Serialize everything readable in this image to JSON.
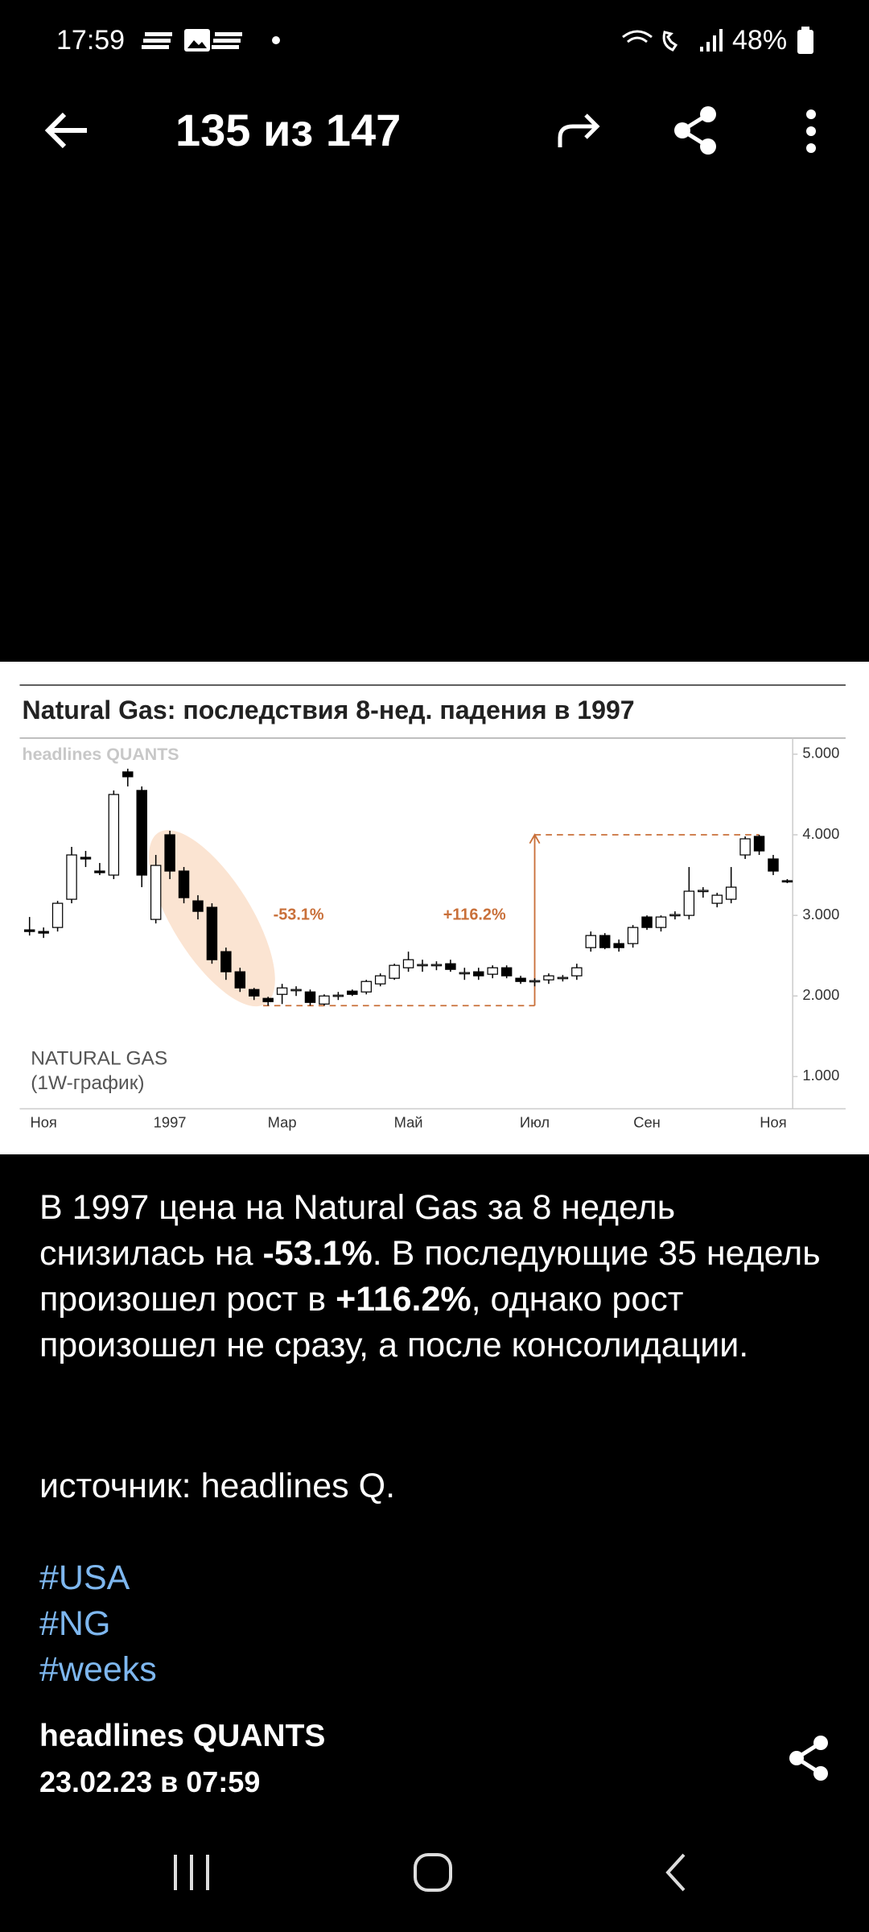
{
  "status_bar": {
    "time": "17:59",
    "battery": "48%"
  },
  "toolbar": {
    "title": "135 из 147"
  },
  "chart_data": {
    "type": "candlestick",
    "title": "Natural Gas: последствия 8-нед. падения в 1997",
    "watermark": "headlines QUANTS",
    "series_label": "NATURAL GAS",
    "series_sublabel": "(1W-график)",
    "annotations": [
      "-53.1%",
      "+116.2%"
    ],
    "categories": [
      null,
      "Ноя",
      null,
      null,
      null,
      null,
      null,
      null,
      null,
      null,
      "1997",
      null,
      null,
      null,
      null,
      null,
      null,
      null,
      "Мар",
      null,
      null,
      null,
      null,
      null,
      null,
      null,
      null,
      "Май",
      null,
      null,
      null,
      null,
      null,
      null,
      null,
      null,
      "Июл",
      null,
      null,
      null,
      null,
      null,
      null,
      null,
      "Сен",
      null,
      null,
      null,
      null,
      null,
      null,
      null,
      null,
      "Ноя",
      null
    ],
    "open": [
      2.82,
      2.8,
      2.85,
      3.2,
      3.72,
      3.55,
      3.5,
      4.78,
      4.55,
      2.95,
      4.0,
      3.55,
      3.18,
      3.1,
      2.55,
      2.3,
      2.08,
      1.97,
      2.02,
      2.07,
      2.05,
      1.9,
      2.0,
      2.06,
      2.05,
      2.15,
      2.22,
      2.35,
      2.38,
      2.38,
      2.4,
      2.28,
      2.3,
      2.27,
      2.35,
      2.22,
      2.18,
      2.2,
      2.22,
      2.25,
      2.6,
      2.75,
      2.65,
      2.65,
      2.98,
      2.85,
      3.0,
      3.0,
      3.3,
      3.15,
      3.2,
      3.75,
      3.98,
      3.7,
      3.43
    ],
    "high": [
      2.98,
      2.85,
      3.18,
      3.85,
      3.8,
      3.65,
      4.55,
      4.82,
      4.6,
      3.75,
      4.05,
      3.6,
      3.25,
      3.15,
      2.6,
      2.35,
      2.1,
      1.99,
      2.15,
      2.12,
      2.08,
      2.02,
      2.05,
      2.08,
      2.2,
      2.28,
      2.4,
      2.55,
      2.45,
      2.43,
      2.45,
      2.35,
      2.35,
      2.38,
      2.38,
      2.25,
      2.22,
      2.28,
      2.26,
      2.4,
      2.8,
      2.78,
      2.7,
      2.88,
      3.0,
      3.0,
      3.05,
      3.6,
      3.35,
      3.28,
      3.6,
      3.98,
      4.0,
      3.75,
      3.45
    ],
    "low": [
      2.75,
      2.72,
      2.8,
      3.15,
      3.6,
      3.5,
      3.45,
      4.6,
      3.35,
      2.9,
      3.45,
      3.15,
      2.95,
      2.4,
      2.2,
      2.05,
      1.95,
      1.88,
      1.9,
      2.0,
      1.88,
      1.88,
      1.95,
      2.0,
      2.02,
      2.12,
      2.2,
      2.3,
      2.3,
      2.32,
      2.3,
      2.2,
      2.2,
      2.22,
      2.22,
      2.15,
      2.12,
      2.15,
      2.18,
      2.2,
      2.55,
      2.58,
      2.55,
      2.6,
      2.82,
      2.8,
      2.95,
      2.95,
      3.22,
      3.1,
      3.15,
      3.7,
      3.75,
      3.5,
      3.4
    ],
    "close": [
      2.8,
      2.78,
      3.15,
      3.75,
      3.7,
      3.53,
      4.5,
      4.72,
      3.5,
      3.62,
      3.55,
      3.22,
      3.05,
      2.45,
      2.3,
      2.1,
      2.0,
      1.93,
      2.1,
      2.08,
      1.92,
      2.0,
      2.01,
      2.02,
      2.18,
      2.25,
      2.38,
      2.45,
      2.39,
      2.39,
      2.33,
      2.29,
      2.25,
      2.35,
      2.25,
      2.18,
      2.19,
      2.25,
      2.23,
      2.35,
      2.75,
      2.6,
      2.6,
      2.85,
      2.85,
      2.98,
      3.01,
      3.3,
      3.31,
      3.25,
      3.35,
      3.95,
      3.8,
      3.55,
      3.42
    ],
    "ylim": [
      0.6,
      5.2
    ],
    "yticks": [
      {
        "value": 5,
        "label": "5.000"
      },
      {
        "value": 4,
        "label": "4.000"
      },
      {
        "value": 3,
        "label": "3.000"
      },
      {
        "value": 2,
        "label": "2.000"
      },
      {
        "value": 1,
        "label": "1.000"
      }
    ],
    "up_color": "#ffffff",
    "down_color": "#000000",
    "annotation_color": "#c9703a",
    "highlight_color": "#fbe4d2"
  },
  "post": {
    "text": [
      {
        "text": "В 1997 цена на Natural Gas за 8 недель снизилась на ",
        "bold": false
      },
      {
        "text": "-53.1%",
        "bold": true
      },
      {
        "text": ". В последующие 35 недель произошел рост в ",
        "bold": false
      },
      {
        "text": "+116.2%",
        "bold": true
      },
      {
        "text": ", однако рост произошел не сразу, а после консолидации.",
        "bold": false
      }
    ],
    "source": "источник: headlines Q.",
    "hashtags": [
      "#USA",
      "#NG",
      "#weeks"
    ],
    "author": "headlines QUANTS",
    "date": "23.02.23 в 07:59"
  }
}
